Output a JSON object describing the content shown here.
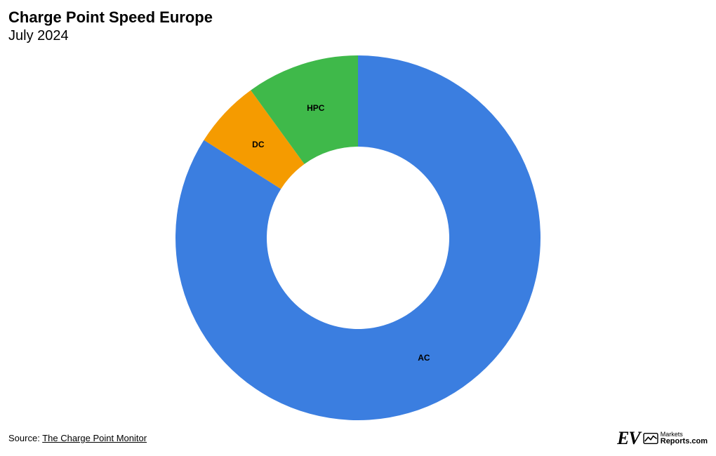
{
  "title": "Charge Point Speed Europe",
  "subtitle": "July 2024",
  "title_fontsize": 22,
  "subtitle_fontsize": 20,
  "chart": {
    "type": "donut",
    "outer_radius": 260,
    "inner_radius": 130,
    "start_angle_deg": 0,
    "background_color": "#ffffff",
    "label_fontsize": 12,
    "label_fontweight": "bold",
    "label_color": "#000000",
    "slices": [
      {
        "label": "AC",
        "value": 84,
        "color": "#3b7ee0"
      },
      {
        "label": "DC",
        "value": 6,
        "color": "#f59b00"
      },
      {
        "label": "HPC",
        "value": 10,
        "color": "#3fb94a"
      }
    ]
  },
  "source_prefix": "Source: ",
  "source_label": "The Charge Point Monitor",
  "brand": {
    "ev": "EV",
    "markets": "Markets",
    "reports": "Reports",
    "suffix": ".com"
  }
}
